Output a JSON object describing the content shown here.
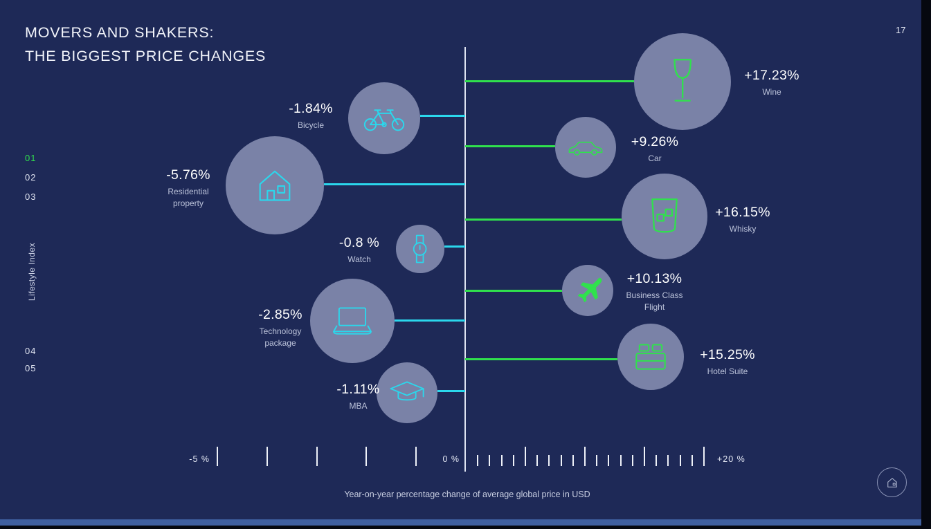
{
  "page": {
    "number": "17",
    "title_line1": "MOVERS AND SHAKERS:",
    "title_line2": "THE BIGGEST PRICE CHANGES",
    "caption": "Year-on-year percentage change of average global price in USD"
  },
  "sidebar": {
    "vertical_label": "Lifestyle Index",
    "items": [
      {
        "label": "01",
        "active": true
      },
      {
        "label": "02",
        "active": false
      },
      {
        "label": "03",
        "active": false
      },
      {
        "label": "04",
        "active": false
      },
      {
        "label": "05",
        "active": false
      }
    ]
  },
  "axis": {
    "min_label": "-5 %",
    "zero_label": "0 %",
    "max_label": "+20 %",
    "left_tick_count": 5,
    "right_tick_count": 20,
    "right_major_every": 5
  },
  "colors": {
    "background": "#1e2957",
    "negative": "#2bd7ec",
    "positive": "#30e14d",
    "bubble": "#7a82a7",
    "accent_bar": "#3f5f9f"
  },
  "chart_data": {
    "type": "diverging-bubble",
    "title": "Movers and Shakers: The Biggest Price Changes",
    "xlabel": "Year-on-year percentage change of average global price in USD",
    "x_axis": {
      "negative_range": [
        -5,
        0
      ],
      "positive_range": [
        0,
        20
      ],
      "tick_labels": [
        "-5 %",
        "0 %",
        "+20 %"
      ]
    },
    "negative_items": [
      {
        "name": "Bicycle",
        "value": -1.84,
        "value_label": "-1.84%",
        "icon": "bicycle-icon"
      },
      {
        "name": "Residential property",
        "value": -5.76,
        "value_label": "-5.76%",
        "icon": "house-icon"
      },
      {
        "name": "Watch",
        "value": -0.8,
        "value_label": "-0.8 %",
        "icon": "watch-icon"
      },
      {
        "name": "Technology package",
        "value": -2.85,
        "value_label": "-2.85%",
        "icon": "laptop-icon"
      },
      {
        "name": "MBA",
        "value": -1.11,
        "value_label": "-1.11%",
        "icon": "graduation-cap-icon"
      }
    ],
    "positive_items": [
      {
        "name": "Wine",
        "value": 17.23,
        "value_label": "+17.23%",
        "icon": "wine-glass-icon"
      },
      {
        "name": "Car",
        "value": 9.26,
        "value_label": "+9.26%",
        "icon": "car-icon"
      },
      {
        "name": "Whisky",
        "value": 16.15,
        "value_label": "+16.15%",
        "icon": "whisky-glass-icon"
      },
      {
        "name": "Business Class Flight",
        "value": 10.13,
        "value_label": "+10.13%",
        "icon": "airplane-icon"
      },
      {
        "name": "Hotel Suite",
        "value": 15.25,
        "value_label": "+15.25%",
        "icon": "bed-icon"
      }
    ]
  }
}
